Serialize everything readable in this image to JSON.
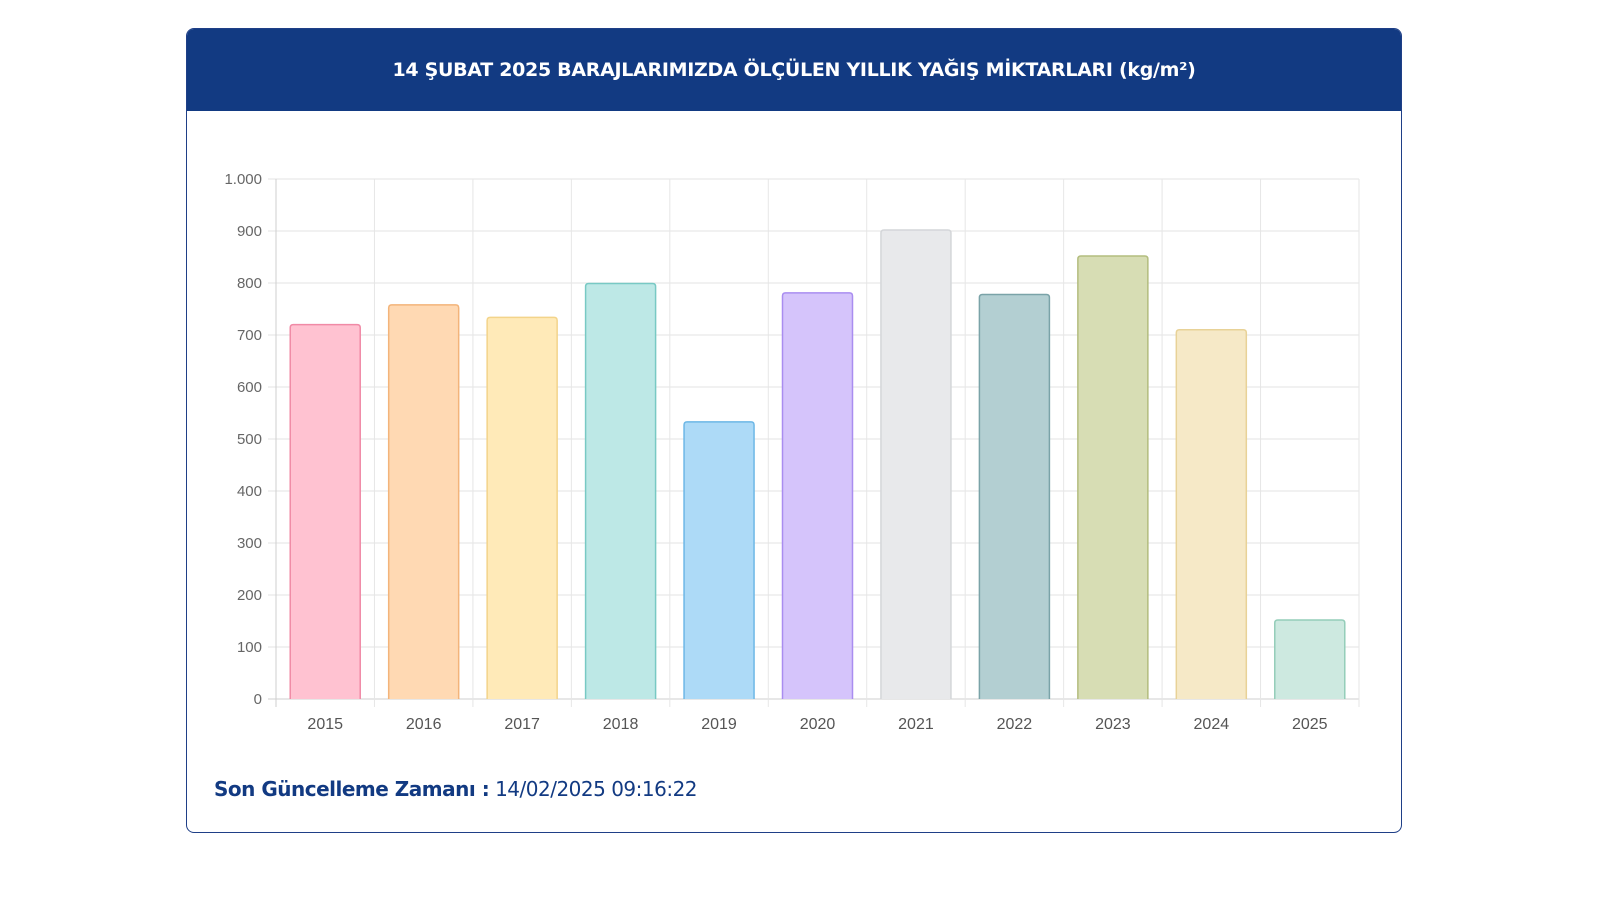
{
  "header": {
    "title": "14 ŞUBAT 2025 BARAJLARIMIZDA ÖLÇÜLEN YILLIK YAĞIŞ MİKTARLARI (kg/m²)"
  },
  "footer": {
    "label": "Son Güncelleme Zamanı :",
    "timestamp": "14/02/2025 09:16:22"
  },
  "chart_data": {
    "type": "bar",
    "title": "14 ŞUBAT 2025 BARAJLARIMIZDA ÖLÇÜLEN YILLIK YAĞIŞ MİKTARLARI (kg/m²)",
    "xlabel": "",
    "ylabel": "",
    "ylim": [
      0,
      1000
    ],
    "yticks": [
      0,
      100,
      200,
      300,
      400,
      500,
      600,
      700,
      800,
      900,
      1000
    ],
    "ytick_labels": [
      "0",
      "100",
      "200",
      "300",
      "400",
      "500",
      "600",
      "700",
      "800",
      "900",
      "1.000"
    ],
    "grid": true,
    "categories": [
      "2015",
      "2016",
      "2017",
      "2018",
      "2019",
      "2020",
      "2021",
      "2022",
      "2023",
      "2024",
      "2025"
    ],
    "values": [
      720,
      758,
      734,
      799,
      533,
      781,
      902,
      778,
      852,
      710,
      152
    ],
    "colors": [
      {
        "fill": "#ffc2d1",
        "stroke": "#f08aa6"
      },
      {
        "fill": "#ffd9b3",
        "stroke": "#f3b47a"
      },
      {
        "fill": "#ffeab8",
        "stroke": "#f3d48a"
      },
      {
        "fill": "#bde8e6",
        "stroke": "#78c9c4"
      },
      {
        "fill": "#addaf7",
        "stroke": "#6db7e6"
      },
      {
        "fill": "#d5c4fb",
        "stroke": "#a98df0"
      },
      {
        "fill": "#e8e9eb",
        "stroke": "#d4d6d9"
      },
      {
        "fill": "#b3cfd2",
        "stroke": "#7aa3a8"
      },
      {
        "fill": "#d7ddb4",
        "stroke": "#b3bd7e"
      },
      {
        "fill": "#f6e9c7",
        "stroke": "#e8d297"
      },
      {
        "fill": "#cde9e0",
        "stroke": "#94cdb9"
      }
    ]
  }
}
